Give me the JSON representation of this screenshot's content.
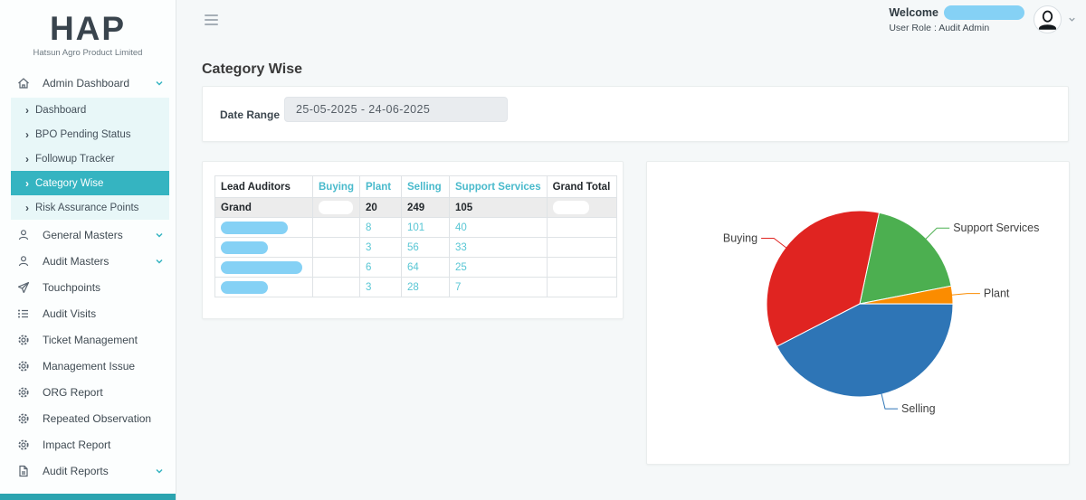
{
  "brand": {
    "logo_text": "HAP",
    "company_name": "Hatsun Agro Product Limited"
  },
  "header": {
    "welcome_label": "Welcome",
    "user_role": "User Role : Audit Admin"
  },
  "sidebar": {
    "items": [
      {
        "label": "Admin Dashboard",
        "icon": "home-icon",
        "expanded": true,
        "children": [
          {
            "label": "Dashboard",
            "active": false
          },
          {
            "label": "BPO Pending Status",
            "active": false
          },
          {
            "label": "Followup Tracker",
            "active": false
          },
          {
            "label": "Category Wise",
            "active": true
          },
          {
            "label": "Risk Assurance Points",
            "active": false
          }
        ]
      },
      {
        "label": "General Masters",
        "icon": "user-icon",
        "collapsible": true
      },
      {
        "label": "Audit Masters",
        "icon": "user-icon",
        "collapsible": true
      },
      {
        "label": "Touchpoints",
        "icon": "send-icon"
      },
      {
        "label": "Audit Visits",
        "icon": "list-icon"
      },
      {
        "label": "Ticket Management",
        "icon": "gear-icon"
      },
      {
        "label": "Management Issue",
        "icon": "gear-icon"
      },
      {
        "label": "ORG Report",
        "icon": "gear-icon"
      },
      {
        "label": "Repeated Observation",
        "icon": "gear-icon"
      },
      {
        "label": "Impact Report",
        "icon": "gear-icon"
      },
      {
        "label": "Audit Reports",
        "icon": "file-icon",
        "collapsible": true
      }
    ]
  },
  "page": {
    "title": "Category Wise"
  },
  "filters": {
    "date_range_label": "Date Range",
    "date_range_value": "25-05-2025 - 24-06-2025"
  },
  "table": {
    "columns": [
      {
        "label": "Lead Auditors",
        "accent": false
      },
      {
        "label": "Buying",
        "accent": true
      },
      {
        "label": "Plant",
        "accent": true
      },
      {
        "label": "Selling",
        "accent": true
      },
      {
        "label": "Support Services",
        "accent": true
      },
      {
        "label": "Grand Total",
        "accent": false
      }
    ],
    "grand_row": {
      "label": "Grand",
      "buying_redacted": true,
      "plant": "20",
      "selling": "249",
      "support_services": "105",
      "grand_total_redacted": true
    },
    "rows": [
      {
        "name_redacted": true,
        "buying": "",
        "plant": "8",
        "selling": "101",
        "support_services": "40",
        "grand_total": ""
      },
      {
        "name_redacted": true,
        "buying": "",
        "plant": "3",
        "selling": "56",
        "support_services": "33",
        "grand_total": ""
      },
      {
        "name_redacted": true,
        "buying": "",
        "plant": "6",
        "selling": "64",
        "support_services": "25",
        "grand_total": ""
      },
      {
        "name_redacted": true,
        "buying": "",
        "plant": "3",
        "selling": "28",
        "support_services": "7",
        "grand_total": ""
      }
    ]
  },
  "chart_data": {
    "type": "pie",
    "title": "",
    "legend_position": "none",
    "label_style": "outside-with-connectors",
    "start_angle_deg": 12,
    "series": [
      {
        "name": "Support Services",
        "percent": 18.6,
        "color": "#4caf50"
      },
      {
        "name": "Plant",
        "percent": 3.1,
        "color": "#fb8c00"
      },
      {
        "name": "Selling",
        "percent": 42.4,
        "color": "#2e75b6"
      },
      {
        "name": "Buying",
        "percent": 35.9,
        "color": "#e02421"
      }
    ]
  },
  "colors": {
    "accent_teal": "#35b4c1",
    "submenu_bg": "#e8f7f8",
    "redaction_blue": "#85d1f5",
    "grand_row_bg": "#ececec",
    "table_link_teal": "#58c6d4"
  }
}
